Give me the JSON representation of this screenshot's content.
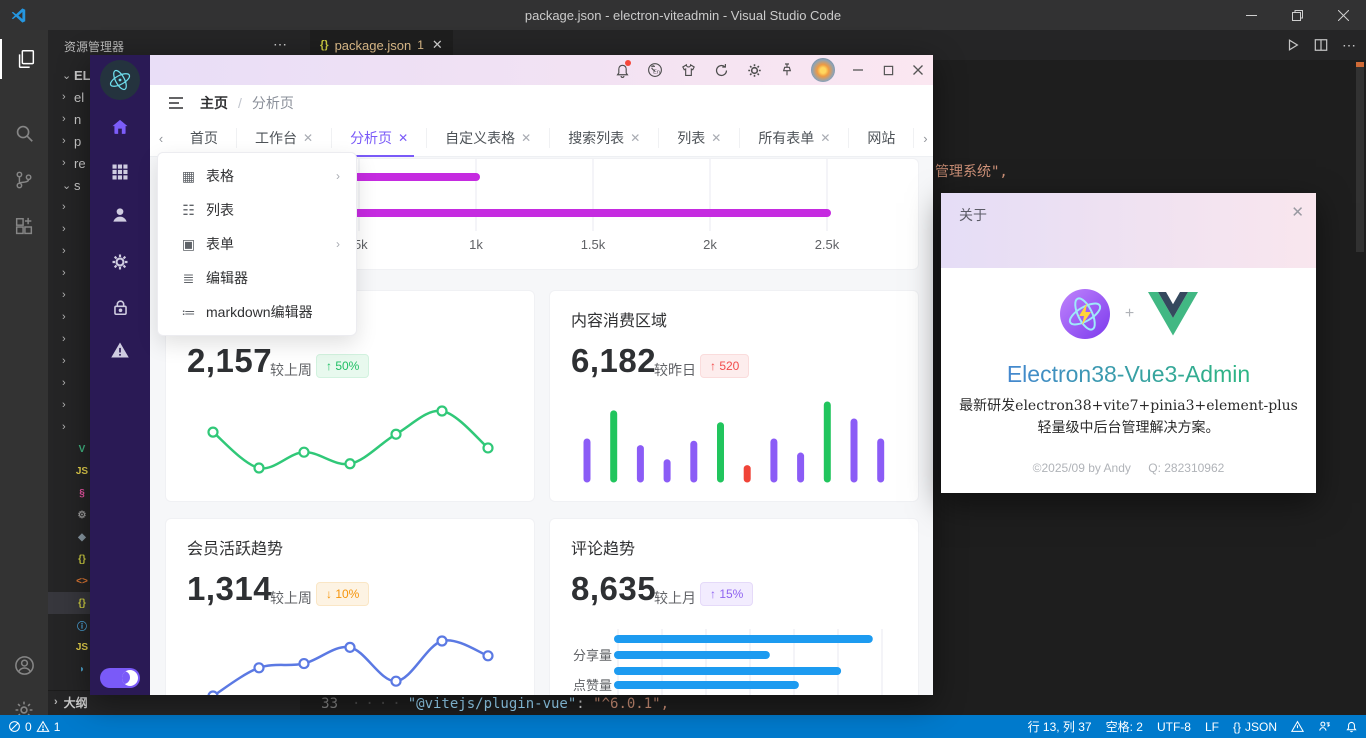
{
  "vscode": {
    "title_bar": {
      "title": "package.json - electron-viteadmin - Visual Studio Code"
    },
    "explorer": {
      "header": "资源管理器",
      "outline": "大纲",
      "rows": [
        {
          "chevron": "v",
          "label": "ELEC",
          "bold": true
        },
        {
          "chevron": ">",
          "label": "el"
        },
        {
          "chevron": ">",
          "label": "n"
        },
        {
          "chevron": ">",
          "label": "p"
        },
        {
          "chevron": ">",
          "label": "re"
        },
        {
          "chevron": "v",
          "label": "s"
        },
        {
          "chevron": ">",
          "label": ""
        },
        {
          "chevron": ">",
          "label": ""
        },
        {
          "chevron": ">",
          "label": ""
        },
        {
          "chevron": ">",
          "label": ""
        },
        {
          "chevron": ">",
          "label": ""
        },
        {
          "chevron": ">",
          "label": ""
        },
        {
          "chevron": ">",
          "label": ""
        },
        {
          "chevron": ">",
          "label": ""
        },
        {
          "chevron": ">",
          "label": ""
        },
        {
          "chevron": ">",
          "label": ""
        },
        {
          "chevron": ">",
          "label": ""
        },
        {
          "icon": "vue",
          "label": ""
        },
        {
          "icon": "js",
          "label": ""
        },
        {
          "icon": "pink",
          "label": ""
        },
        {
          "icon": "gear",
          "label": ".e"
        },
        {
          "icon": "diamond",
          "label": ".g"
        },
        {
          "icon": "braces",
          "label": "el"
        },
        {
          "icon": "angle",
          "label": "in"
        },
        {
          "icon": "braces",
          "label": "p",
          "selected": true
        },
        {
          "icon": "info",
          "label": "R"
        },
        {
          "icon": "js",
          "label": "vi"
        },
        {
          "icon": "yarn",
          "label": "y"
        }
      ]
    },
    "tab": {
      "icon": "{}",
      "name": "package.json",
      "badge": "1"
    },
    "editor": {
      "line_no": "33",
      "code_key": "\"@vitejs/plugin-vue\"",
      "code_colon": ": ",
      "code_val": "\"^6.0.1\",",
      "bg_text": "管理系统\","
    },
    "status": {
      "errors": "0",
      "warnings": "1",
      "line_col": "行 13, 列 37",
      "spaces": "空格: 2",
      "enc": "UTF-8",
      "eol": "LF",
      "lang_icon": "{}",
      "lang": "JSON"
    }
  },
  "app": {
    "breadcrumb": {
      "root": "主页",
      "sep": "/",
      "page": "分析页"
    },
    "tabs": [
      {
        "label": "首页",
        "closable": false
      },
      {
        "label": "工作台",
        "closable": true
      },
      {
        "label": "分析页",
        "closable": true,
        "active": true
      },
      {
        "label": "自定义表格",
        "closable": true
      },
      {
        "label": "搜索列表",
        "closable": true
      },
      {
        "label": "列表",
        "closable": true
      },
      {
        "label": "所有表单",
        "closable": true
      },
      {
        "label": "网站",
        "closable": false
      }
    ],
    "menu": [
      {
        "icon": "table",
        "label": "表格",
        "submenu": true
      },
      {
        "icon": "list",
        "label": "列表",
        "submenu": false
      },
      {
        "icon": "form",
        "label": "表单",
        "submenu": true
      },
      {
        "icon": "editor",
        "label": "编辑器",
        "submenu": false
      },
      {
        "icon": "markdown",
        "label": "markdown编辑器",
        "submenu": false
      }
    ],
    "cards": [
      {
        "title": "",
        "value": "2,157",
        "compare": "较上周",
        "badge": "↑ 50%",
        "badge_type": "green"
      },
      {
        "title": "内容消费区域",
        "value": "6,182",
        "compare": "较昨日",
        "badge": "↑ 520",
        "badge_type": "red"
      },
      {
        "title": "会员活跃趋势",
        "value": "1,314",
        "compare": "较上周",
        "badge": "↓ 10%",
        "badge_type": "orange"
      },
      {
        "title": "评论趋势",
        "value": "8,635",
        "compare": "较上月",
        "badge": "↑ 15%",
        "badge_type": "purple"
      }
    ]
  },
  "about": {
    "title": "关于",
    "plus": "+",
    "name": "Electron38-Vue3-Admin",
    "desc": "最新研发electron38+vite7+pinia3+element-plus轻量级中后台管理解决方案。",
    "footer_left": "©2025/09 by Andy",
    "footer_right": "Q: 282310962"
  },
  "chart_data": [
    {
      "id": "top-traffic",
      "type": "bar",
      "orientation": "horizontal",
      "color": "#c52be0",
      "values": [
        1000,
        2500
      ],
      "x_ticks": [
        ".5k",
        "1k",
        "1.5k",
        "2k",
        "2.5k"
      ],
      "xlim": [
        500,
        2500
      ],
      "grid": true,
      "title": ""
    },
    {
      "id": "card1-trend",
      "type": "line",
      "color": "#30c878",
      "markers": true,
      "values": [
        62,
        28,
        43,
        32,
        60,
        82,
        47
      ]
    },
    {
      "id": "card2-consumption",
      "type": "bar",
      "values": [
        50,
        88,
        41,
        22,
        47,
        72,
        14,
        50,
        31,
        100,
        77,
        50
      ],
      "colors": [
        "#8b5cf6",
        "#21c55d",
        "#8b5cf6",
        "#8b5cf6",
        "#8b5cf6",
        "#21c55d",
        "#f04438",
        "#8b5cf6",
        "#8b5cf6",
        "#21c55d",
        "#8b5cf6",
        "#8b5cf6"
      ]
    },
    {
      "id": "card3-members",
      "type": "line",
      "color": "#5b79e3",
      "markers": true,
      "values": [
        15,
        55,
        61,
        84,
        36,
        93,
        72
      ]
    },
    {
      "id": "card4-comments",
      "type": "bar",
      "orientation": "horizontal",
      "color": "#1d9bf0",
      "grid": true,
      "rows": [
        {
          "label": "",
          "value": 95
        },
        {
          "label": "分享量",
          "value": 56
        },
        {
          "label": "",
          "value": 83
        },
        {
          "label": "点赞量",
          "value": 67
        }
      ]
    }
  ]
}
